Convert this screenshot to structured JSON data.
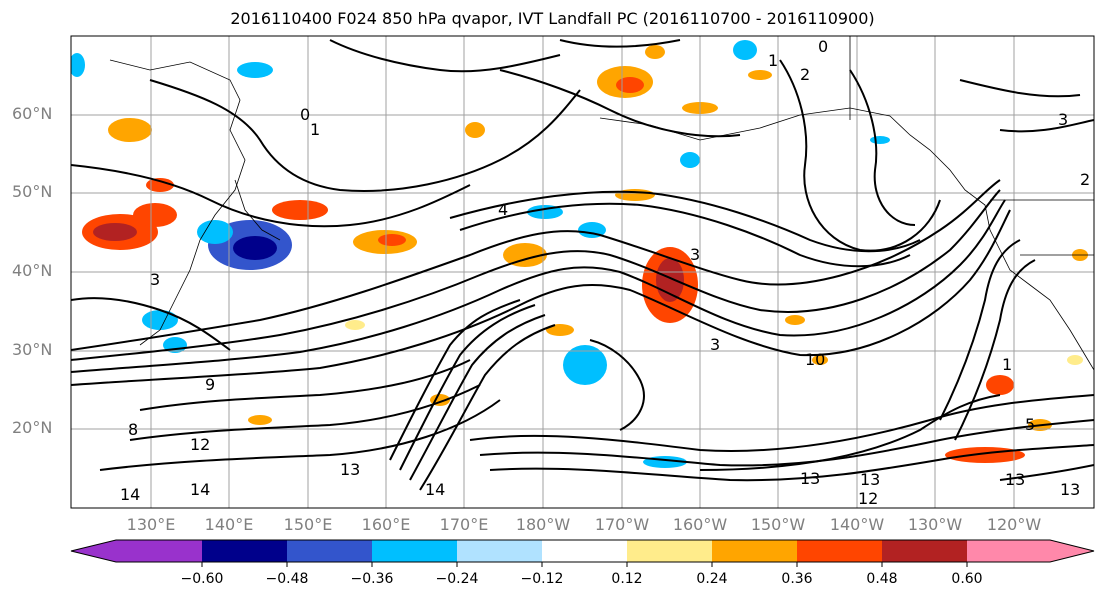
{
  "title": "2016110400 F024 850 hPa qvapor, IVT Landfall PC (2016110700 - 2016110900)",
  "lat_labels": [
    "60°N",
    "50°N",
    "40°N",
    "30°N",
    "20°N"
  ],
  "lon_labels": [
    "130°E",
    "140°E",
    "150°E",
    "160°E",
    "170°E",
    "180°W",
    "170°W",
    "160°W",
    "150°W",
    "140°W",
    "130°W",
    "120°W"
  ],
  "colorbar": {
    "ticks": [
      "−0.60",
      "−0.48",
      "−0.36",
      "−0.24",
      "−0.12",
      "0.12",
      "0.24",
      "0.36",
      "0.48",
      "0.60"
    ],
    "colors": [
      "#9932cc",
      "#00008b",
      "#3355cc",
      "#00bfff",
      "#b0e2ff",
      "#ffffff",
      "#ffec8b",
      "#ffa500",
      "#ff4500",
      "#b22222",
      "#ff88aa"
    ]
  },
  "contour_labels": [
    "0",
    "1",
    "2",
    "3",
    "4",
    "5",
    "8",
    "9",
    "10",
    "12",
    "13",
    "14"
  ]
}
